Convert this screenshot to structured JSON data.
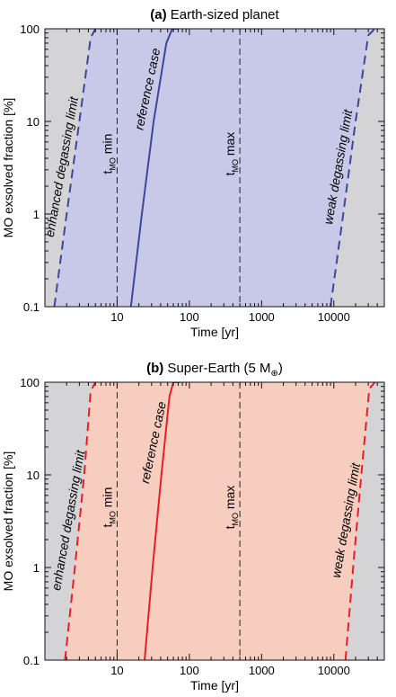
{
  "chart_data": [
    {
      "type": "line",
      "panel_label": "(a)",
      "title": "Earth-sized planet",
      "title_sub": "",
      "xlabel": "Time [yr]",
      "ylabel": "MO exsolved fraction [%]",
      "xscale": "log",
      "yscale": "log",
      "xlim": [
        1.0,
        50000
      ],
      "ylim": [
        0.1,
        100
      ],
      "xticks": [
        10,
        100,
        1000,
        10000
      ],
      "xtick_labels": [
        "10",
        "100",
        "1000",
        "10000"
      ],
      "yticks": [
        0.1,
        1,
        10,
        100
      ],
      "ytick_labels": [
        "0.1",
        "1",
        "10",
        "100"
      ],
      "grid": false,
      "background_color": "#d4d4d6",
      "band_color": "#c8c9e9",
      "series_color": "#3d469a",
      "series": [
        {
          "label": "enhanced degassing limit",
          "style": "dashed",
          "x": [
            1.35,
            2.0,
            3.0,
            4.3,
            5.0
          ],
          "y": [
            0.1,
            1.0,
            10,
            80,
            100
          ]
        },
        {
          "label": "reference case",
          "style": "solid",
          "x": [
            15.5,
            22,
            32,
            48,
            58,
            70
          ],
          "y": [
            0.1,
            1.0,
            10,
            70,
            100,
            100
          ]
        },
        {
          "label": "weak degassing limit",
          "style": "dashed",
          "x": [
            9000,
            13500,
            20000,
            30000,
            37000
          ],
          "y": [
            0.1,
            1.0,
            10,
            85,
            100
          ]
        }
      ],
      "band": {
        "left_x": [
          1.35,
          2.0,
          3.0,
          4.3,
          5.0
        ],
        "right_x": [
          9000,
          13500,
          20000,
          30000,
          37000
        ],
        "y": [
          0.1,
          1.0,
          10,
          80,
          100
        ]
      },
      "vlines": [
        {
          "x": 10,
          "label_main": "t",
          "label_sub": "MO",
          "label_tail": " min"
        },
        {
          "x": 500,
          "label_main": "t",
          "label_sub": "MO",
          "label_tail": " max"
        }
      ]
    },
    {
      "type": "line",
      "panel_label": "(b)",
      "title": "Super-Earth (5 M",
      "title_sub": "⊕",
      "title_tail": ")",
      "xlabel": "Time [yr]",
      "ylabel": "MO exsolved fraction [%]",
      "xscale": "log",
      "yscale": "log",
      "xlim": [
        1.0,
        50000
      ],
      "ylim": [
        0.1,
        100
      ],
      "xticks": [
        10,
        100,
        1000,
        10000
      ],
      "xtick_labels": [
        "10",
        "100",
        "1000",
        "10000"
      ],
      "yticks": [
        0.1,
        1,
        10,
        100
      ],
      "ytick_labels": [
        "0.1",
        "1",
        "10",
        "100"
      ],
      "grid": false,
      "background_color": "#d4d4d6",
      "band_color": "#f6cdbf",
      "series_color": "#ea1d25",
      "series": [
        {
          "label": "enhanced degassing limit",
          "style": "dashed",
          "x": [
            1.9,
            2.6,
            3.5,
            4.3,
            5.0
          ],
          "y": [
            0.1,
            1.0,
            10,
            80,
            100
          ]
        },
        {
          "label": "reference case",
          "style": "solid",
          "x": [
            24,
            31,
            41,
            53,
            60,
            75
          ],
          "y": [
            0.1,
            1.0,
            10,
            70,
            100,
            100
          ]
        },
        {
          "label": "weak degassing limit",
          "style": "dashed",
          "x": [
            14500,
            18500,
            24000,
            31000,
            37000
          ],
          "y": [
            0.1,
            1.0,
            10,
            85,
            100
          ]
        }
      ],
      "band": {
        "left_x": [
          1.9,
          2.6,
          3.5,
          4.3,
          5.0
        ],
        "right_x": [
          14500,
          18500,
          24000,
          31000,
          37000
        ],
        "y": [
          0.1,
          1.0,
          10,
          80,
          100
        ]
      },
      "vlines": [
        {
          "x": 10,
          "label_main": "t",
          "label_sub": "MO",
          "label_tail": " min"
        },
        {
          "x": 500,
          "label_main": "t",
          "label_sub": "MO",
          "label_tail": " max"
        }
      ]
    }
  ]
}
